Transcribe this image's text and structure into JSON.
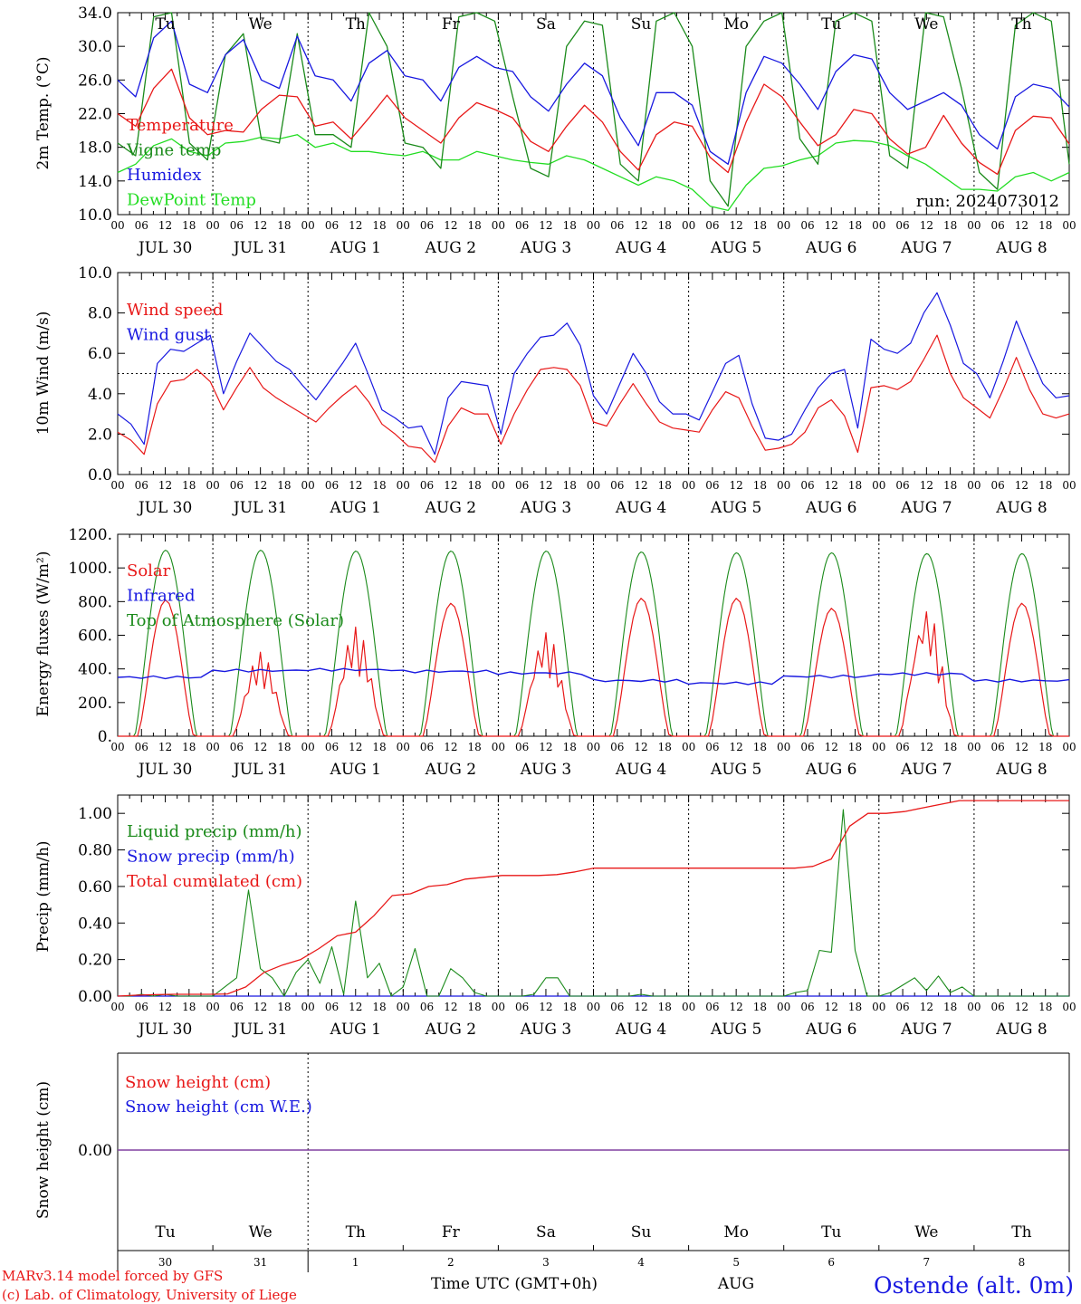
{
  "run_label": "run: 2024073012",
  "hour_labels": [
    "00",
    "06",
    "12",
    "18"
  ],
  "date_labels": [
    "JUL 30",
    "JUL 31",
    "AUG  1",
    "AUG  2",
    "AUG  3",
    "AUG  4",
    "AUG  5",
    "AUG  6",
    "AUG  7",
    "AUG  8"
  ],
  "weekdays": [
    "Tu",
    "We",
    "Th",
    "Fr",
    "Sa",
    "Su",
    "Mo",
    "Tu",
    "We",
    "Th"
  ],
  "weekday_colors": [
    "#000000",
    "#000000",
    "#000000",
    "#000000",
    "#e02020",
    "#e02020",
    "#000000",
    "#000000",
    "#000000",
    "#000000"
  ],
  "day_numbers": [
    "30",
    "31",
    "1",
    "2",
    "3",
    "4",
    "5",
    "6",
    "7",
    "8"
  ],
  "month_label": "AUG",
  "xlabel": "Time UTC (GMT+0h)",
  "station": "Ostende (alt. 0m)",
  "credits": [
    "MARv3.14 model forced by GFS",
    "(c) Lab. of Climatology, University of Liege"
  ],
  "colors": {
    "red": "#e81818",
    "blue": "#1818e0",
    "green": "#1a8a1a",
    "lightgreen": "#22dd22",
    "purple": "#8040a0"
  },
  "chart_data": [
    {
      "type": "line",
      "ylabel": "2m Temp. (°C)",
      "ylim": [
        10,
        34
      ],
      "yticks": [
        "10.0",
        "14.0",
        "18.0",
        "22.0",
        "26.0",
        "30.0",
        "34.0"
      ],
      "x_hours_step": 12,
      "legend": [
        "Temperature",
        "Vigne temp",
        "Humidex",
        "DewPoint Temp"
      ],
      "series": [
        {
          "name": "Temperature",
          "color": "red",
          "values": [
            22.0,
            20.5,
            25.0,
            27.3,
            21.5,
            19.5,
            20.0,
            19.8,
            22.5,
            24.2,
            24.0,
            20.5,
            21.0,
            19.0,
            21.5,
            24.2,
            21.5,
            20.0,
            18.5,
            21.5,
            23.3,
            22.5,
            21.5,
            18.7,
            17.5,
            20.5,
            23.0,
            21.0,
            17.5,
            15.3,
            19.5,
            21.0,
            20.5,
            16.8,
            15.0,
            21.0,
            25.5,
            24.0,
            21.0,
            18.2,
            19.5,
            22.5,
            22.0,
            19.0,
            17.2,
            18.0,
            21.8,
            18.5,
            16.2,
            14.8,
            20.0,
            21.7,
            21.5,
            18.4
          ]
        },
        {
          "name": "Vigne temp",
          "color": "green",
          "values": [
            18.5,
            17.0,
            33.5,
            34.0,
            18.5,
            16.5,
            29.0,
            31.5,
            19.0,
            18.5,
            31.5,
            19.5,
            19.5,
            18.0,
            34.0,
            30.0,
            18.5,
            18.0,
            15.5,
            33.5,
            34.0,
            33.0,
            24.0,
            15.5,
            14.5,
            30.0,
            33.0,
            32.5,
            16.0,
            14.0,
            33.0,
            34.0,
            30.0,
            14.0,
            11.0,
            30.0,
            33.0,
            34.0,
            19.0,
            16.0,
            33.0,
            34.0,
            33.0,
            17.0,
            15.5,
            34.0,
            33.5,
            25.0,
            15.0,
            13.0,
            32.5,
            34.0,
            33.0,
            16.0
          ]
        },
        {
          "name": "Humidex",
          "color": "blue",
          "values": [
            26.0,
            24.0,
            31.0,
            33.0,
            25.5,
            24.5,
            29.0,
            30.8,
            26.0,
            25.0,
            31.2,
            26.5,
            26.0,
            23.5,
            28.0,
            29.5,
            26.5,
            26.0,
            23.5,
            27.5,
            28.8,
            27.5,
            27.0,
            24.0,
            22.3,
            25.5,
            28.0,
            26.5,
            21.5,
            18.2,
            24.5,
            24.5,
            23.0,
            17.5,
            16.0,
            24.5,
            28.8,
            28.0,
            25.5,
            22.5,
            27.0,
            29.0,
            28.5,
            24.5,
            22.5,
            23.5,
            24.5,
            23.0,
            19.5,
            17.8,
            24.0,
            25.5,
            25.0,
            22.8
          ]
        },
        {
          "name": "DewPoint Temp",
          "color": "lightgreen",
          "values": [
            15.0,
            16.0,
            18.2,
            19.0,
            17.5,
            17.0,
            18.5,
            18.7,
            19.2,
            19.0,
            19.5,
            18.0,
            18.5,
            17.5,
            17.5,
            17.2,
            17.0,
            17.5,
            16.5,
            16.5,
            17.5,
            17.0,
            16.5,
            16.2,
            16.0,
            17.0,
            16.5,
            15.5,
            14.5,
            13.5,
            14.5,
            14.0,
            13.0,
            11.0,
            10.5,
            13.5,
            15.5,
            15.8,
            16.5,
            17.0,
            18.5,
            18.8,
            18.7,
            18.2,
            17.0,
            16.0,
            14.5,
            13.0,
            13.0,
            12.8,
            14.5,
            15.0,
            14.0,
            15.0
          ]
        }
      ]
    },
    {
      "type": "line",
      "ylabel": "10m Wind (m/s)",
      "ylim": [
        0,
        10
      ],
      "yticks": [
        "0.0",
        "2.0",
        "4.0",
        "6.0",
        "8.0",
        "10.0"
      ],
      "x_hours_step": 6,
      "legend": [
        "Wind speed",
        "Wind gust"
      ],
      "series": [
        {
          "name": "Wind speed",
          "color": "red",
          "values": [
            2.1,
            1.7,
            1.0,
            3.5,
            4.6,
            4.7,
            5.2,
            4.6,
            3.2,
            4.3,
            5.3,
            4.3,
            3.8,
            3.4,
            3.0,
            2.6,
            3.3,
            3.9,
            4.4,
            3.6,
            2.5,
            2.0,
            1.4,
            1.3,
            0.6,
            2.4,
            3.3,
            3.0,
            3.0,
            1.5,
            3.0,
            4.2,
            5.2,
            5.3,
            5.2,
            4.4,
            2.6,
            2.4,
            3.5,
            4.5,
            3.5,
            2.6,
            2.3,
            2.2,
            2.1,
            3.2,
            4.1,
            3.8,
            2.4,
            1.2,
            1.3,
            1.5,
            2.1,
            3.3,
            3.7,
            2.9,
            1.1,
            4.3,
            4.4,
            4.2,
            4.6,
            5.7,
            6.9,
            5.0,
            3.8,
            3.3,
            2.8,
            4.2,
            5.8,
            4.2,
            3.0,
            2.8,
            3.0
          ]
        },
        {
          "name": "Wind gust",
          "color": "blue",
          "values": [
            3.0,
            2.5,
            1.5,
            5.5,
            6.2,
            6.1,
            6.5,
            6.9,
            4.0,
            5.6,
            7.0,
            6.3,
            5.6,
            5.2,
            4.4,
            3.7,
            4.6,
            5.5,
            6.5,
            4.9,
            3.2,
            2.8,
            2.3,
            2.4,
            1.0,
            3.8,
            4.6,
            4.5,
            4.4,
            2.0,
            5.0,
            6.0,
            6.8,
            6.9,
            7.5,
            6.4,
            3.9,
            3.0,
            4.5,
            6.0,
            5.0,
            3.6,
            3.0,
            3.0,
            2.7,
            4.1,
            5.5,
            5.9,
            3.5,
            1.8,
            1.7,
            2.0,
            3.2,
            4.3,
            5.0,
            5.2,
            2.3,
            6.7,
            6.2,
            6.0,
            6.5,
            8.0,
            9.0,
            7.4,
            5.5,
            5.0,
            3.8,
            5.6,
            7.6,
            6.0,
            4.5,
            3.8,
            3.9
          ]
        }
      ]
    },
    {
      "type": "line",
      "ylabel": "Energy fluxes (W/m²)",
      "ylim": [
        0,
        1200
      ],
      "yticks": [
        "0.",
        "200.",
        "400.",
        "600.",
        "800.",
        "1000.",
        "1200."
      ],
      "legend": [
        "Solar",
        "Infrared",
        "Top of Atmosphere (Solar)"
      ],
      "series": [
        {
          "name": "Solar",
          "color": "red",
          "daily_peak": [
            810,
            500,
            650,
            790,
            620,
            820,
            820,
            760,
            760,
            790
          ]
        },
        {
          "name": "Infrared",
          "color": "blue",
          "daily_mean": [
            350,
            390,
            395,
            385,
            375,
            330,
            315,
            355,
            370,
            330
          ]
        },
        {
          "name": "Top of Atmosphere (Solar)",
          "color": "green",
          "daily_peak": [
            1105,
            1105,
            1100,
            1100,
            1100,
            1095,
            1090,
            1090,
            1085,
            1085
          ]
        }
      ]
    },
    {
      "type": "line",
      "ylabel": "Precip (mm/h)",
      "ylim": [
        0,
        1.1
      ],
      "yticks": [
        "0.00",
        "0.20",
        "0.40",
        "0.60",
        "0.80",
        "1.00"
      ],
      "x_hours_step": 6,
      "legend": [
        "Liquid precip (mm/h)",
        "Snow precip (mm/h)",
        "Total cumulated (cm)"
      ],
      "series": [
        {
          "name": "Liquid precip (mm/h)",
          "color": "green",
          "values": [
            0,
            0,
            0.01,
            0,
            0.01,
            0,
            0,
            0,
            0,
            0.05,
            0.1,
            0.58,
            0.15,
            0.1,
            0,
            0.13,
            0.2,
            0.07,
            0.27,
            0.01,
            0.52,
            0.1,
            0.18,
            0,
            0.05,
            0.26,
            0,
            0,
            0.15,
            0.1,
            0.02,
            0,
            0,
            0,
            0,
            0.01,
            0.1,
            0.1,
            0,
            0,
            0,
            0,
            0,
            0,
            0.01,
            0,
            0,
            0,
            0,
            0,
            0,
            0,
            0,
            0,
            0,
            0,
            0,
            0.02,
            0.03,
            0.25,
            0.24,
            1.02,
            0.25,
            0,
            0,
            0.02,
            0.06,
            0.1,
            0.03,
            0.11,
            0.02,
            0.05,
            0,
            0,
            0,
            0,
            0,
            0,
            0,
            0,
            0
          ]
        },
        {
          "name": "Snow precip (mm/h)",
          "color": "blue",
          "values": [
            0,
            0
          ]
        },
        {
          "name": "Total cumulated (cm)",
          "color": "red",
          "values": [
            0.0,
            0.005,
            0.008,
            0.01,
            0.01,
            0.01,
            0.012,
            0.05,
            0.13,
            0.17,
            0.2,
            0.26,
            0.33,
            0.35,
            0.44,
            0.55,
            0.56,
            0.6,
            0.61,
            0.64,
            0.65,
            0.66,
            0.66,
            0.66,
            0.665,
            0.68,
            0.7,
            0.7,
            0.7,
            0.7,
            0.7,
            0.7,
            0.7,
            0.7,
            0.7,
            0.7,
            0.7,
            0.7,
            0.71,
            0.75,
            0.93,
            1.0,
            1.0,
            1.01,
            1.03,
            1.05,
            1.07,
            1.07,
            1.07,
            1.07,
            1.07,
            1.07,
            1.07
          ]
        }
      ]
    },
    {
      "type": "line",
      "ylabel": "Snow height (cm)",
      "yticks": [
        "0.00"
      ],
      "legend": [
        "Snow height (cm)",
        "Snow height (cm W.E.)"
      ],
      "series": [
        {
          "name": "Snow height (cm)",
          "color": "red",
          "values": [
            0.0,
            0.0
          ]
        },
        {
          "name": "Snow height (cm W.E.)",
          "color": "blue",
          "values": [
            0.0,
            0.0
          ]
        }
      ]
    }
  ]
}
